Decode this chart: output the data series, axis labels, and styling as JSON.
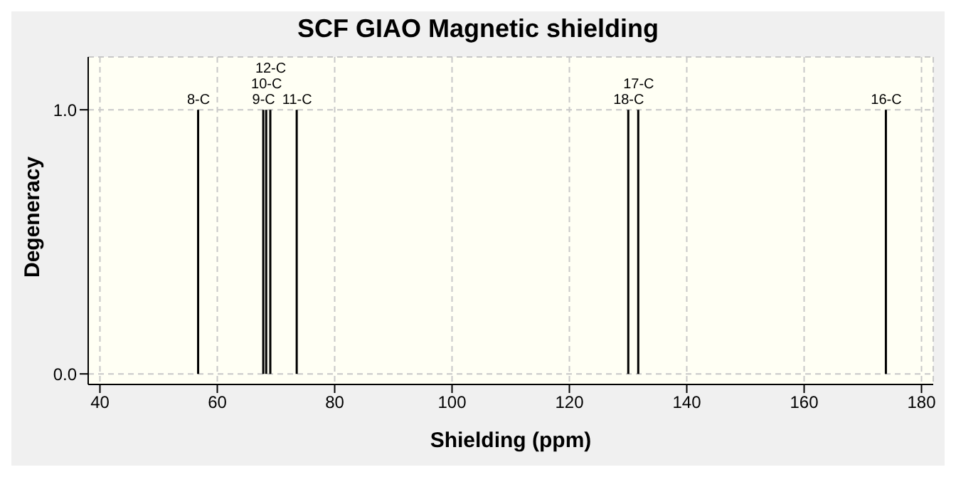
{
  "chart_data": {
    "type": "bar",
    "title": "SCF GIAO Magnetic shielding",
    "xlabel": "Shielding (ppm)",
    "ylabel": "Degeneracy",
    "x": [
      56.8,
      67.9,
      68.4,
      69.1,
      73.6,
      130.1,
      131.8,
      174.0
    ],
    "values": [
      1,
      1,
      1,
      1,
      1,
      1,
      1,
      1
    ],
    "color": "#000000",
    "xlim": [
      38,
      182
    ],
    "xticks": [
      40,
      60,
      80,
      100,
      120,
      140,
      160,
      180
    ],
    "ylim": [
      -0.04,
      1.2
    ],
    "yticks": [
      {
        "value": 0,
        "label": "0.0"
      },
      {
        "value": 1,
        "label": "1.0"
      }
    ],
    "grid": true,
    "annotations": [
      {
        "text": "8-C",
        "x": 56.8,
        "y": 1
      },
      {
        "text": "9-C",
        "x": 67.9,
        "y": 1
      },
      {
        "text": "10-C",
        "x": 68.4,
        "y": 1
      },
      {
        "text": "12-C",
        "x": 69.1,
        "y": 1
      },
      {
        "text": "11-C",
        "x": 73.6,
        "y": 1
      },
      {
        "text": "18-C",
        "x": 130.1,
        "y": 1
      },
      {
        "text": "17-C",
        "x": 131.8,
        "y": 1
      },
      {
        "text": "16-C",
        "x": 174.0,
        "y": 1
      }
    ]
  }
}
